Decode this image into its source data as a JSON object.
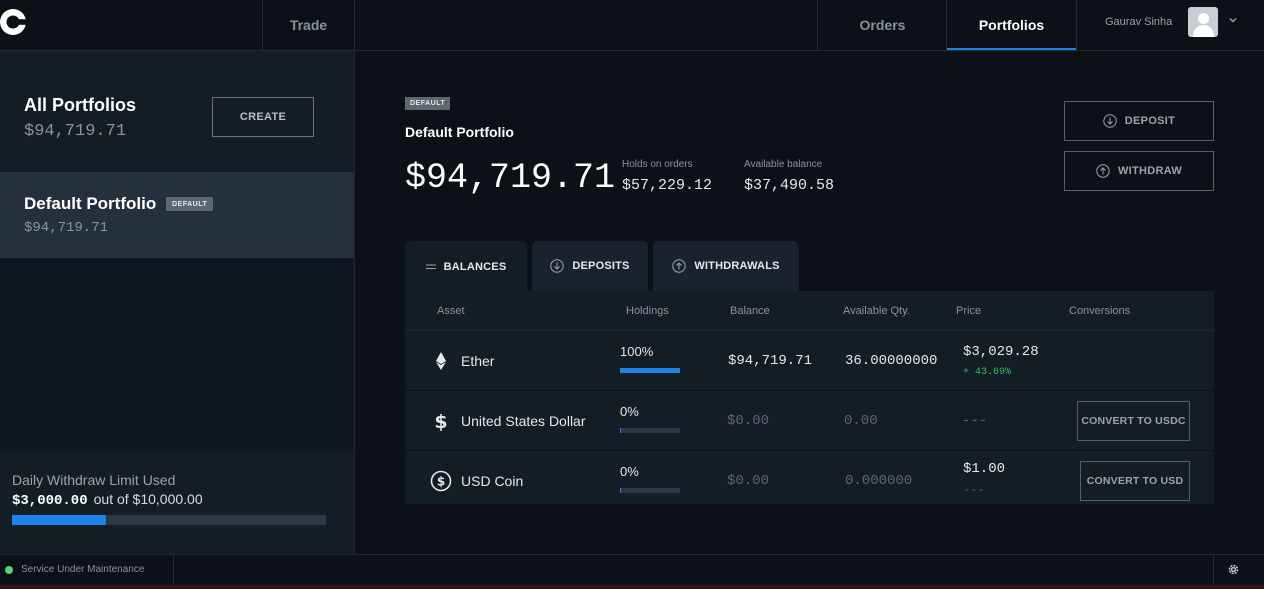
{
  "nav": {
    "trade": "Trade",
    "orders": "Orders",
    "portfolios": "Portfolios",
    "user_name": "Gaurav Sinha",
    "active_tab": "Portfolios",
    "accent": "#1e83e7"
  },
  "sidebar": {
    "all": {
      "title": "All Portfolios",
      "value": "$94,719.71",
      "create_label": "CREATE"
    },
    "default": {
      "title": "Default Portfolio",
      "badge": "DEFAULT",
      "value": "$94,719.71"
    },
    "limit": {
      "label": "Daily Withdraw Limit Used",
      "used": "$3,000.00",
      "suffix": "out of $10,000.00",
      "fraction": 0.3
    }
  },
  "main": {
    "badge": "DEFAULT",
    "portfolio_name": "Default Portfolio",
    "total": "$94,719.71",
    "holds_label": "Holds on orders",
    "holds_value": "$57,229.12",
    "available_label": "Available balance",
    "available_value": "$37,490.58",
    "deposit_label": "DEPOSIT",
    "withdraw_label": "WITHDRAW",
    "tabs": [
      {
        "label": "BALANCES",
        "icon": "list-icon",
        "active": true
      },
      {
        "label": "DEPOSITS",
        "icon": "arrow-down-circle-icon",
        "active": false
      },
      {
        "label": "WITHDRAWALS",
        "icon": "arrow-up-circle-icon",
        "active": false
      }
    ],
    "table": {
      "headers": [
        "Asset",
        "Holdings",
        "Balance",
        "Available Qty.",
        "Price",
        "Conversions"
      ],
      "rows": [
        {
          "icon": "ether-icon",
          "asset": "Ether",
          "holding_pct": "100%",
          "holding_fraction": 1.0,
          "balance": "$94,719.71",
          "available": "36.00000000",
          "price": "$3,029.28",
          "change": "+ 43.69%",
          "conversion": ""
        },
        {
          "icon": "dollar-icon",
          "asset": "United States Dollar",
          "holding_pct": "0%",
          "holding_fraction": 0.0,
          "balance": "$0.00",
          "available": "0.00",
          "price": "---",
          "change": "",
          "conversion": "CONVERT TO USDC"
        },
        {
          "icon": "usd-coin-icon",
          "asset": "USD Coin",
          "holding_pct": "0%",
          "holding_fraction": 0.0,
          "balance": "$0.00",
          "available": "0.000000",
          "price": "$1.00",
          "change": "---",
          "conversion": "CONVERT TO USD"
        }
      ]
    }
  },
  "footer": {
    "status": "Service Under Maintenance",
    "status_color": "#58d474"
  }
}
